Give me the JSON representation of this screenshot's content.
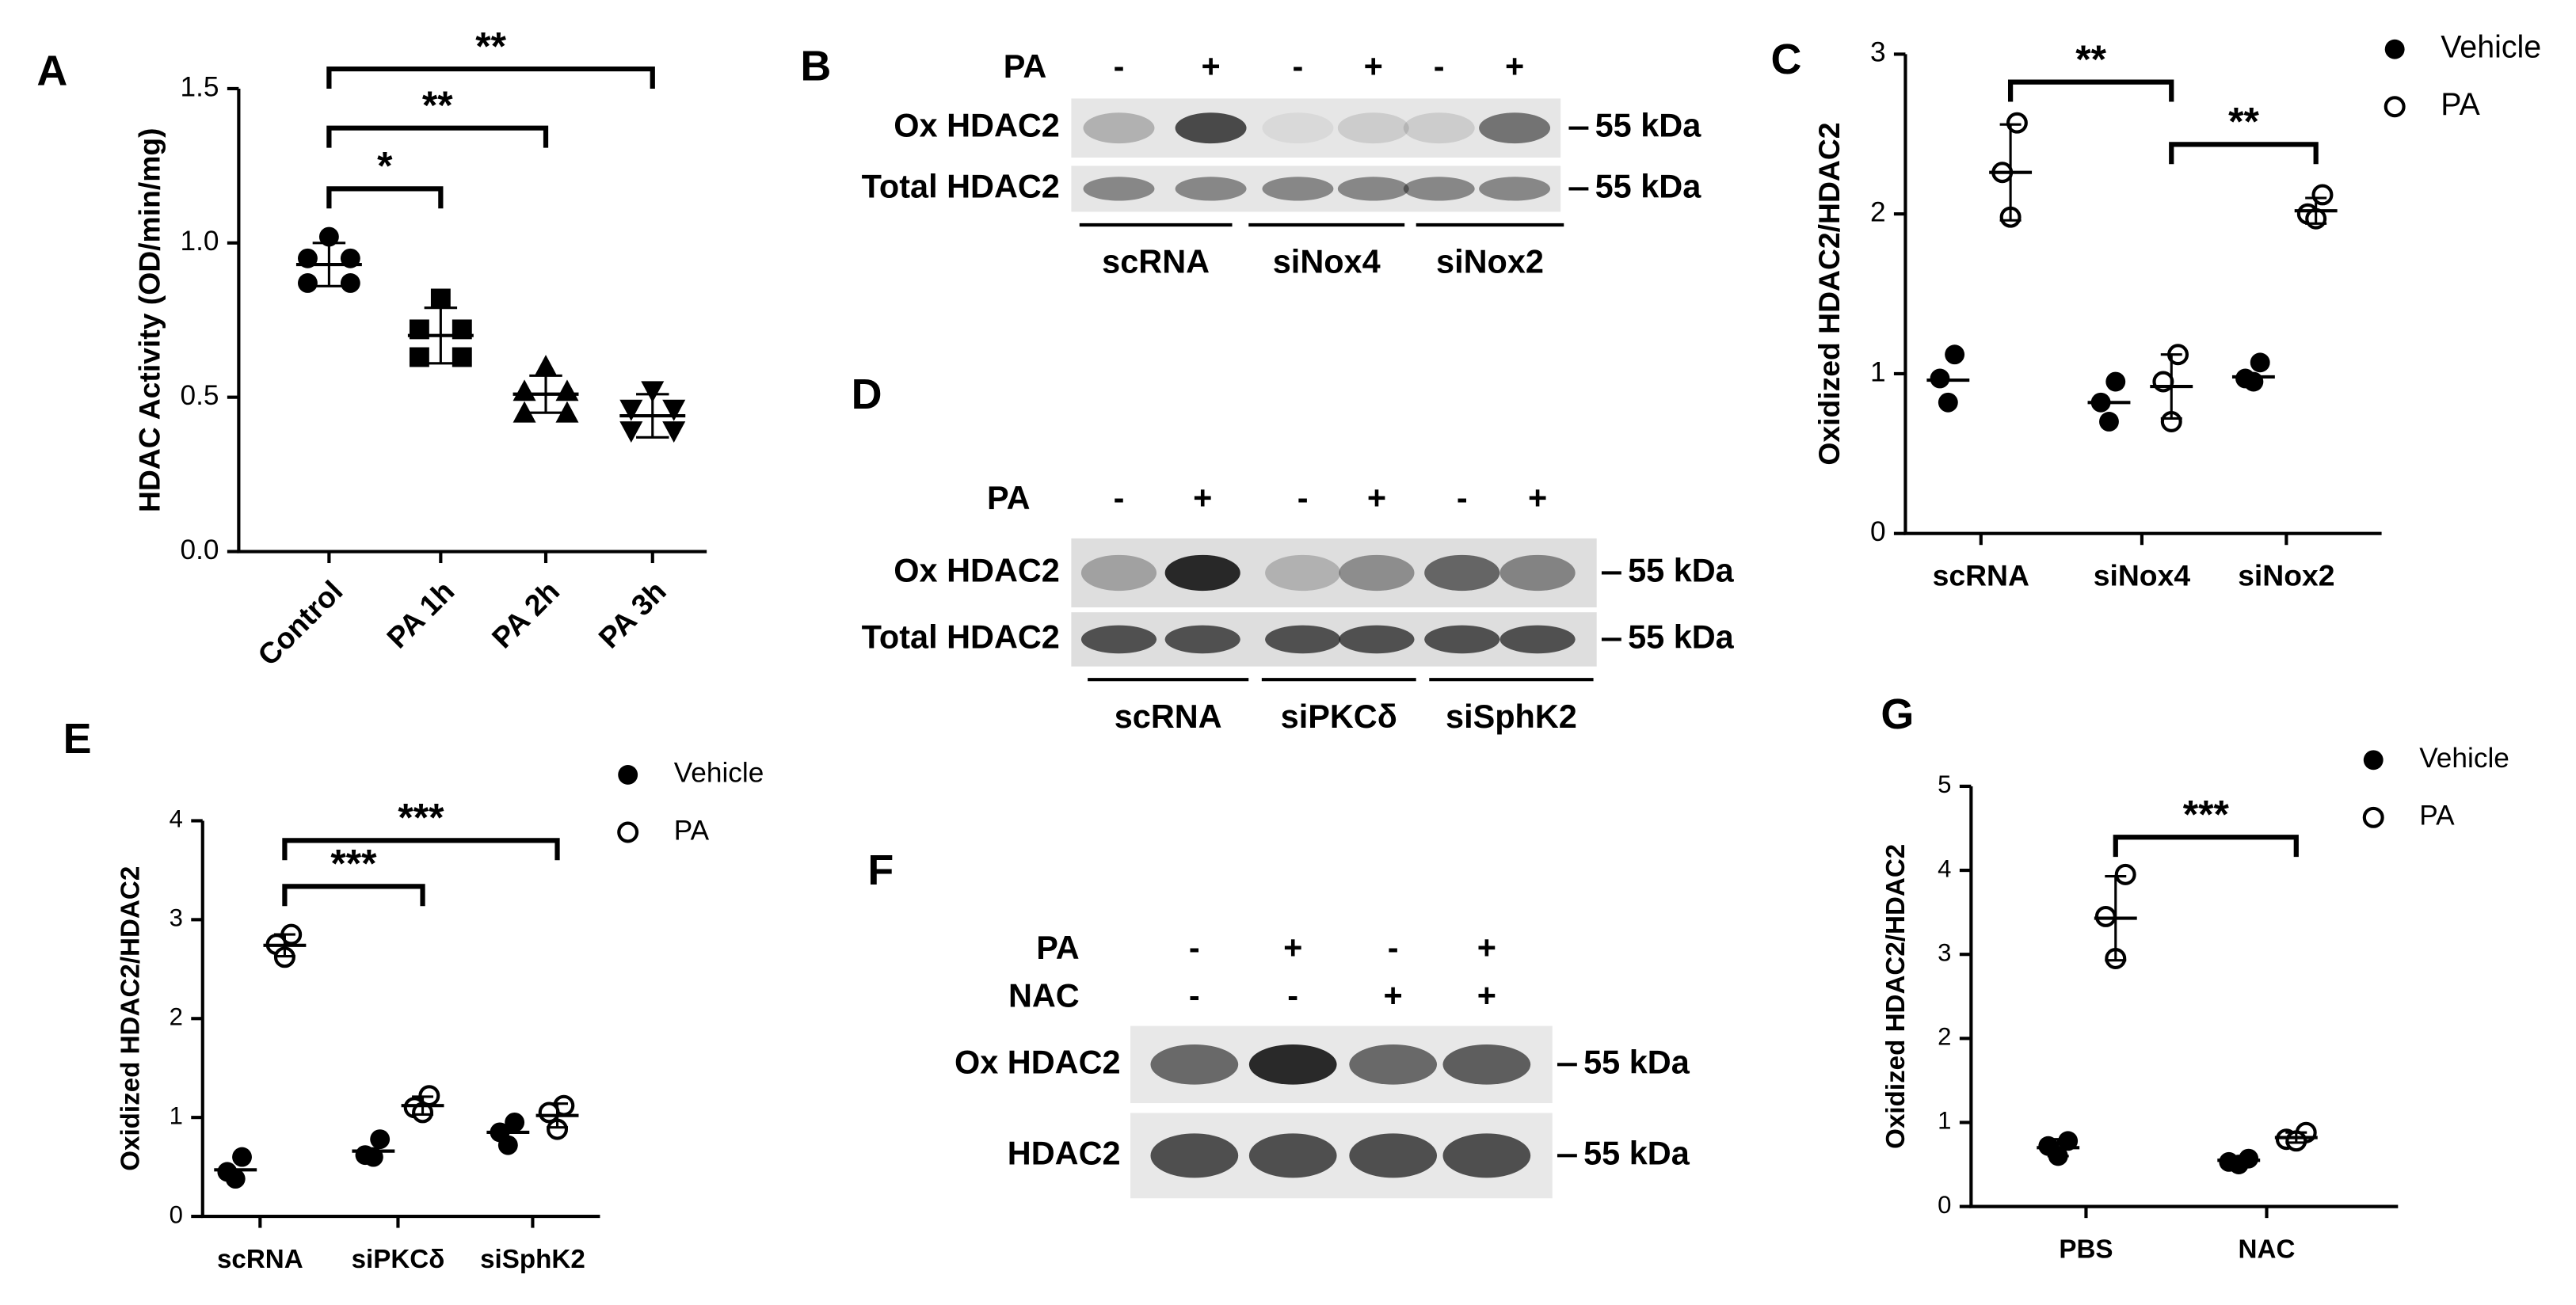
{
  "chart_data": [
    {
      "type": "dot",
      "label": "A",
      "ylabel": "HDAC Activity (OD/min/mg)",
      "categories": [
        "Control",
        "PA 1h",
        "PA 2h",
        "PA 3h"
      ],
      "ylim": [
        0,
        1.5
      ],
      "yticks": [
        {
          "value": 0,
          "label": "0.0"
        },
        0.5,
        {
          "value": 1,
          "label": "1.0"
        },
        1.5
      ],
      "color": "#000000",
      "markers": [
        "circle",
        "square",
        "triangle-up",
        "triangle-down"
      ],
      "values": [
        [
          1.02,
          0.95,
          0.95,
          0.87,
          0.87
        ],
        [
          0.82,
          0.72,
          0.72,
          0.63,
          0.63
        ],
        [
          0.6,
          0.52,
          0.52,
          0.45,
          0.45
        ],
        [
          0.52,
          0.46,
          0.46,
          0.39,
          0.39
        ]
      ],
      "means": [
        0.93,
        0.7,
        0.51,
        0.44
      ],
      "sd": [
        0.07,
        0.09,
        0.06,
        0.07
      ],
      "annotations": [
        {
          "text": "*",
          "from": 0,
          "to": 1
        },
        {
          "text": "**",
          "from": 0,
          "to": 2
        },
        {
          "text": "**",
          "from": 0,
          "to": 3
        }
      ]
    },
    {
      "type": "grouped-dot",
      "label": "C",
      "ylabel": "Oxidized HDAC2/HDAC2",
      "categories": [
        "scRNA",
        "siNox4",
        "siNox2"
      ],
      "ylim": [
        0,
        3
      ],
      "yticks": [
        0,
        1,
        2,
        3
      ],
      "series": [
        {
          "name": "Vehicle",
          "color": "#000000",
          "marker": "filled-circle",
          "values": [
            [
              1.12,
              0.97,
              0.82
            ],
            [
              0.95,
              0.82,
              0.7
            ],
            [
              1.07,
              0.97,
              0.95
            ]
          ],
          "means": [
            0.96,
            0.82,
            0.98
          ]
        },
        {
          "name": "PA",
          "color": "#000000",
          "marker": "open-circle",
          "values": [
            [
              2.57,
              2.26,
              1.98
            ],
            [
              1.12,
              0.95,
              0.7
            ],
            [
              2.12,
              2.0,
              1.97
            ]
          ],
          "means": [
            2.26,
            0.92,
            2.02
          ],
          "sd": [
            0.3,
            0.2,
            0.08
          ]
        }
      ],
      "annotations": [
        {
          "text": "**",
          "from": [
            0,
            1
          ],
          "to": [
            1,
            1
          ]
        },
        {
          "text": "**",
          "from": [
            1,
            1
          ],
          "to": [
            2,
            1
          ]
        }
      ]
    },
    {
      "type": "grouped-dot",
      "label": "E",
      "ylabel": "Oxidized HDAC2/HDAC2",
      "categories": [
        "scRNA",
        "siPKCδ",
        "siSphK2"
      ],
      "ylim": [
        0,
        4
      ],
      "yticks": [
        0,
        1,
        2,
        3,
        4
      ],
      "series": [
        {
          "name": "Vehicle",
          "color": "#000000",
          "marker": "filled-circle",
          "values": [
            [
              0.6,
              0.45,
              0.38
            ],
            [
              0.78,
              0.62,
              0.6
            ],
            [
              0.95,
              0.85,
              0.72
            ]
          ],
          "means": [
            0.47,
            0.66,
            0.85
          ]
        },
        {
          "name": "PA",
          "color": "#000000",
          "marker": "open-circle",
          "values": [
            [
              2.85,
              2.75,
              2.62
            ],
            [
              1.22,
              1.1,
              1.05
            ],
            [
              1.12,
              1.05,
              0.88
            ]
          ],
          "means": [
            2.74,
            1.12,
            1.02
          ],
          "sd": [
            0.11,
            0.09,
            0.12
          ]
        }
      ],
      "annotations": [
        {
          "text": "***",
          "from": [
            0,
            1
          ],
          "to": [
            2,
            1
          ]
        },
        {
          "text": "***",
          "from": [
            0,
            1
          ],
          "to": [
            1,
            1
          ]
        }
      ]
    },
    {
      "type": "grouped-dot",
      "label": "G",
      "ylabel": "Oxidized HDAC2/HDAC2",
      "categories": [
        "PBS",
        "NAC"
      ],
      "ylim": [
        0,
        5
      ],
      "yticks": [
        0,
        1,
        2,
        3,
        4,
        5
      ],
      "series": [
        {
          "name": "Vehicle",
          "color": "#000000",
          "marker": "filled-circle",
          "values": [
            [
              0.78,
              0.72,
              0.6
            ],
            [
              0.57,
              0.53,
              0.5
            ]
          ],
          "means": [
            0.7,
            0.55
          ],
          "sd": [
            0.1,
            0.04
          ]
        },
        {
          "name": "PA",
          "color": "#000000",
          "marker": "open-circle",
          "values": [
            [
              3.95,
              3.45,
              2.95
            ],
            [
              0.88,
              0.8,
              0.78
            ]
          ],
          "means": [
            3.43,
            0.82
          ],
          "sd": [
            0.5,
            0.06
          ]
        }
      ],
      "annotations": [
        {
          "text": "***",
          "from": [
            0,
            1
          ],
          "to": [
            1,
            1
          ]
        }
      ]
    }
  ],
  "blots": [
    {
      "label": "B",
      "conditions": [
        {
          "name": "PA",
          "values": [
            "-",
            "+",
            "-",
            "+",
            "-",
            "+"
          ]
        }
      ],
      "rows": [
        {
          "name": "Ox HDAC2",
          "marker": "55 kDa"
        },
        {
          "name": "Total HDAC2",
          "marker": "55 kDa"
        }
      ],
      "groups": [
        "scRNA",
        "siNox4",
        "siNox2"
      ]
    },
    {
      "label": "D",
      "conditions": [
        {
          "name": "PA",
          "values": [
            "-",
            "+",
            "-",
            "+",
            "-",
            "+"
          ]
        }
      ],
      "rows": [
        {
          "name": "Ox HDAC2",
          "marker": "55 kDa"
        },
        {
          "name": "Total HDAC2",
          "marker": "55 kDa"
        }
      ],
      "groups": [
        "scRNA",
        "siPKCδ",
        "siSphK2"
      ]
    },
    {
      "label": "F",
      "conditions": [
        {
          "name": "PA",
          "values": [
            "-",
            "+",
            "-",
            "+"
          ]
        },
        {
          "name": "NAC",
          "values": [
            "-",
            "-",
            "+",
            "+"
          ]
        }
      ],
      "rows": [
        {
          "name": "Ox HDAC2",
          "marker": "55 kDa"
        },
        {
          "name": "HDAC2",
          "marker": "55 kDa"
        }
      ]
    }
  ]
}
